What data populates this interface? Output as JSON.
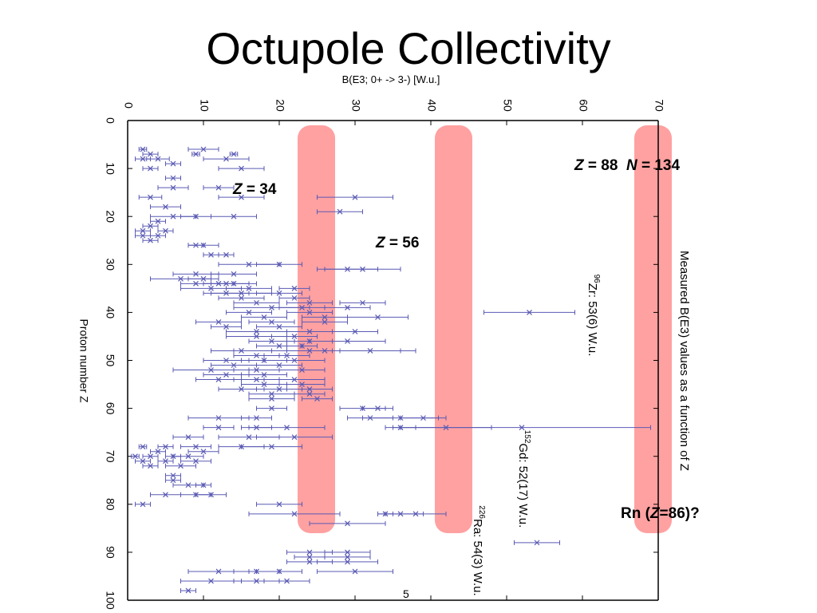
{
  "slide": {
    "title": "Octupole Collectivity",
    "page_number": "5"
  },
  "highlights": [
    {
      "z": 34,
      "label_italic": "Z",
      "label_rest": " = 34"
    },
    {
      "z": 56,
      "label_italic": "Z",
      "label_rest": " = 56"
    },
    {
      "z": 88,
      "label_italic": "Z",
      "label_rest": " = 88",
      "extra_italic": "N",
      "extra_rest": " = 134"
    }
  ],
  "rn_label": {
    "prefix": "Rn (",
    "italic": "Z",
    "suffix": "=86)?"
  },
  "colors": {
    "highlight_band": "#ff9c9c",
    "data_marks": "#5a5ab4",
    "axis": "#000000"
  },
  "chart_data": {
    "type": "scatter",
    "title": "Measured B(E3) values as a function of Z",
    "xlabel": "Proton number Z",
    "ylabel": "B(E3; 0+ -> 3-) [W.u.]",
    "xlim": [
      0,
      100
    ],
    "ylim": [
      0,
      70
    ],
    "x_ticks": [
      "0",
      "10",
      "20",
      "30",
      "40",
      "50",
      "60",
      "70",
      "80",
      "90",
      "100"
    ],
    "y_ticks": [
      "0",
      "10",
      "20",
      "30",
      "40",
      "50",
      "60",
      "70"
    ],
    "annotations": [
      {
        "nuclide_mass": "96",
        "text": "Zr: 53(6) W.u.",
        "z": 40
      },
      {
        "nuclide_mass": "152",
        "text": "Gd: 52(17) W.u.",
        "z": 64
      },
      {
        "nuclide_mass": "226",
        "text": "Ra: 54(3) W.u.",
        "z": 88
      }
    ],
    "series": [
      {
        "name": "",
        "points": [
          {
            "z": 6,
            "v": 2,
            "err": 0.5
          },
          {
            "z": 6,
            "v": 10,
            "err": 2
          },
          {
            "z": 7,
            "v": 3,
            "err": 1
          },
          {
            "z": 7,
            "v": 9,
            "err": 0.5
          },
          {
            "z": 7,
            "v": 14,
            "err": 0.5
          },
          {
            "z": 8,
            "v": 2,
            "err": 1
          },
          {
            "z": 8,
            "v": 4,
            "err": 1.5
          },
          {
            "z": 8,
            "v": 13,
            "err": 3
          },
          {
            "z": 9,
            "v": 6,
            "err": 1
          },
          {
            "z": 10,
            "v": 3,
            "err": 1
          },
          {
            "z": 10,
            "v": 15,
            "err": 3
          },
          {
            "z": 12,
            "v": 6,
            "err": 1
          },
          {
            "z": 14,
            "v": 6,
            "err": 2
          },
          {
            "z": 14,
            "v": 12,
            "err": 2
          },
          {
            "z": 16,
            "v": 3,
            "err": 1.5
          },
          {
            "z": 16,
            "v": 15,
            "err": 3
          },
          {
            "z": 16,
            "v": 30,
            "err": 5
          },
          {
            "z": 18,
            "v": 5,
            "err": 2
          },
          {
            "z": 19,
            "v": 28,
            "err": 3
          },
          {
            "z": 20,
            "v": 6,
            "err": 3
          },
          {
            "z": 20,
            "v": 9,
            "err": 2
          },
          {
            "z": 20,
            "v": 14,
            "err": 3
          },
          {
            "z": 21,
            "v": 4,
            "err": 1
          },
          {
            "z": 22,
            "v": 3,
            "err": 1
          },
          {
            "z": 23,
            "v": 2,
            "err": 1
          },
          {
            "z": 23,
            "v": 5,
            "err": 1
          },
          {
            "z": 24,
            "v": 2,
            "err": 1
          },
          {
            "z": 24,
            "v": 4,
            "err": 1
          },
          {
            "z": 25,
            "v": 3,
            "err": 1
          },
          {
            "z": 26,
            "v": 9,
            "err": 1
          },
          {
            "z": 26,
            "v": 10,
            "err": 2
          },
          {
            "z": 28,
            "v": 11,
            "err": 1
          },
          {
            "z": 28,
            "v": 13,
            "err": 1
          },
          {
            "z": 30,
            "v": 16,
            "err": 4
          },
          {
            "z": 30,
            "v": 20,
            "err": 3
          },
          {
            "z": 31,
            "v": 29,
            "err": 4
          },
          {
            "z": 31,
            "v": 31,
            "err": 5
          },
          {
            "z": 32,
            "v": 9,
            "err": 3
          },
          {
            "z": 32,
            "v": 14,
            "err": 3
          },
          {
            "z": 33,
            "v": 7,
            "err": 4
          },
          {
            "z": 33,
            "v": 10,
            "err": 2
          },
          {
            "z": 34,
            "v": 9,
            "err": 2
          },
          {
            "z": 34,
            "v": 12,
            "err": 2
          },
          {
            "z": 34,
            "v": 13,
            "err": 3
          },
          {
            "z": 34,
            "v": 14,
            "err": 3
          },
          {
            "z": 35,
            "v": 11,
            "err": 4
          },
          {
            "z": 35,
            "v": 16,
            "err": 3
          },
          {
            "z": 35,
            "v": 22,
            "err": 2
          },
          {
            "z": 36,
            "v": 13,
            "err": 3
          },
          {
            "z": 36,
            "v": 15,
            "err": 4
          },
          {
            "z": 36,
            "v": 20,
            "err": 3
          },
          {
            "z": 37,
            "v": 15,
            "err": 3
          },
          {
            "z": 37,
            "v": 22,
            "err": 2
          },
          {
            "z": 38,
            "v": 17,
            "err": 3
          },
          {
            "z": 38,
            "v": 24,
            "err": 3
          },
          {
            "z": 38,
            "v": 31,
            "err": 3
          },
          {
            "z": 39,
            "v": 19,
            "err": 5
          },
          {
            "z": 39,
            "v": 23,
            "err": 3
          },
          {
            "z": 39,
            "v": 29,
            "err": 3
          },
          {
            "z": 40,
            "v": 16,
            "err": 3
          },
          {
            "z": 40,
            "v": 24,
            "err": 3
          },
          {
            "z": 40,
            "v": 53,
            "err": 6
          },
          {
            "z": 41,
            "v": 18,
            "err": 3
          },
          {
            "z": 41,
            "v": 26,
            "err": 3
          },
          {
            "z": 41,
            "v": 33,
            "err": 4
          },
          {
            "z": 42,
            "v": 12,
            "err": 3
          },
          {
            "z": 42,
            "v": 19,
            "err": 3
          },
          {
            "z": 42,
            "v": 26,
            "err": 3
          },
          {
            "z": 43,
            "v": 13,
            "err": 2
          },
          {
            "z": 43,
            "v": 20,
            "err": 3
          },
          {
            "z": 44,
            "v": 17,
            "err": 4
          },
          {
            "z": 44,
            "v": 24,
            "err": 3
          },
          {
            "z": 44,
            "v": 30,
            "err": 3
          },
          {
            "z": 45,
            "v": 17,
            "err": 4
          },
          {
            "z": 45,
            "v": 22,
            "err": 3
          },
          {
            "z": 46,
            "v": 19,
            "err": 3
          },
          {
            "z": 46,
            "v": 24,
            "err": 3
          },
          {
            "z": 46,
            "v": 29,
            "err": 5
          },
          {
            "z": 47,
            "v": 20,
            "err": 3
          },
          {
            "z": 47,
            "v": 23,
            "err": 2
          },
          {
            "z": 48,
            "v": 15,
            "err": 4
          },
          {
            "z": 48,
            "v": 24,
            "err": 3
          },
          {
            "z": 48,
            "v": 26,
            "err": 12
          },
          {
            "z": 48,
            "v": 32,
            "err": 4
          },
          {
            "z": 49,
            "v": 17,
            "err": 3
          },
          {
            "z": 49,
            "v": 21,
            "err": 3
          },
          {
            "z": 50,
            "v": 13,
            "err": 3
          },
          {
            "z": 50,
            "v": 18,
            "err": 3
          },
          {
            "z": 50,
            "v": 22,
            "err": 4
          },
          {
            "z": 51,
            "v": 14,
            "err": 3
          },
          {
            "z": 51,
            "v": 20,
            "err": 3
          },
          {
            "z": 52,
            "v": 11,
            "err": 5
          },
          {
            "z": 52,
            "v": 17,
            "err": 3
          },
          {
            "z": 52,
            "v": 23,
            "err": 3
          },
          {
            "z": 53,
            "v": 13,
            "err": 3
          },
          {
            "z": 53,
            "v": 18,
            "err": 3
          },
          {
            "z": 54,
            "v": 12,
            "err": 3
          },
          {
            "z": 54,
            "v": 17,
            "err": 3
          },
          {
            "z": 54,
            "v": 22,
            "err": 4
          },
          {
            "z": 55,
            "v": 18,
            "err": 3
          },
          {
            "z": 55,
            "v": 23,
            "err": 3
          },
          {
            "z": 56,
            "v": 15,
            "err": 3
          },
          {
            "z": 56,
            "v": 20,
            "err": 3
          },
          {
            "z": 56,
            "v": 24,
            "err": 3
          },
          {
            "z": 57,
            "v": 19,
            "err": 3
          },
          {
            "z": 57,
            "v": 24,
            "err": 2
          },
          {
            "z": 58,
            "v": 25,
            "err": 2
          },
          {
            "z": 58,
            "v": 19,
            "err": 3
          },
          {
            "z": 60,
            "v": 19,
            "err": 2
          },
          {
            "z": 60,
            "v": 31,
            "err": 3
          },
          {
            "z": 60,
            "v": 33,
            "err": 2
          },
          {
            "z": 62,
            "v": 12,
            "err": 4
          },
          {
            "z": 62,
            "v": 17,
            "err": 2
          },
          {
            "z": 62,
            "v": 32,
            "err": 3
          },
          {
            "z": 62,
            "v": 36,
            "err": 5
          },
          {
            "z": 62,
            "v": 39,
            "err": 3
          },
          {
            "z": 64,
            "v": 12,
            "err": 2
          },
          {
            "z": 64,
            "v": 17,
            "err": 2
          },
          {
            "z": 64,
            "v": 21,
            "err": 5
          },
          {
            "z": 64,
            "v": 36,
            "err": 2
          },
          {
            "z": 64,
            "v": 42,
            "err": 6
          },
          {
            "z": 64,
            "v": 52,
            "err": 17
          },
          {
            "z": 66,
            "v": 8,
            "err": 2
          },
          {
            "z": 66,
            "v": 16,
            "err": 4
          },
          {
            "z": 66,
            "v": 22,
            "err": 5
          },
          {
            "z": 68,
            "v": 2,
            "err": 0.5
          },
          {
            "z": 68,
            "v": 5,
            "err": 1
          },
          {
            "z": 68,
            "v": 9,
            "err": 2
          },
          {
            "z": 68,
            "v": 15,
            "err": 3
          },
          {
            "z": 68,
            "v": 19,
            "err": 4
          },
          {
            "z": 69,
            "v": 4,
            "err": 1
          },
          {
            "z": 69,
            "v": 10,
            "err": 2
          },
          {
            "z": 70,
            "v": 1,
            "err": 0.5
          },
          {
            "z": 70,
            "v": 3,
            "err": 1
          },
          {
            "z": 70,
            "v": 6,
            "err": 1
          },
          {
            "z": 70,
            "v": 8,
            "err": 2
          },
          {
            "z": 71,
            "v": 2,
            "err": 1
          },
          {
            "z": 71,
            "v": 5,
            "err": 1
          },
          {
            "z": 71,
            "v": 9,
            "err": 2
          },
          {
            "z": 72,
            "v": 3,
            "err": 1
          },
          {
            "z": 72,
            "v": 7,
            "err": 2
          },
          {
            "z": 74,
            "v": 6,
            "err": 1
          },
          {
            "z": 75,
            "v": 6,
            "err": 1
          },
          {
            "z": 76,
            "v": 8,
            "err": 2
          },
          {
            "z": 76,
            "v": 10,
            "err": 1
          },
          {
            "z": 78,
            "v": 5,
            "err": 2
          },
          {
            "z": 78,
            "v": 9,
            "err": 2
          },
          {
            "z": 78,
            "v": 11,
            "err": 2
          },
          {
            "z": 80,
            "v": 2,
            "err": 1
          },
          {
            "z": 80,
            "v": 20,
            "err": 3
          },
          {
            "z": 82,
            "v": 22,
            "err": 6
          },
          {
            "z": 82,
            "v": 34,
            "err": 1
          },
          {
            "z": 82,
            "v": 36,
            "err": 3
          },
          {
            "z": 82,
            "v": 38,
            "err": 4
          },
          {
            "z": 84,
            "v": 29,
            "err": 5
          },
          {
            "z": 88,
            "v": 54,
            "err": 3
          },
          {
            "z": 90,
            "v": 24,
            "err": 3
          },
          {
            "z": 90,
            "v": 29,
            "err": 3
          },
          {
            "z": 91,
            "v": 24,
            "err": 2
          },
          {
            "z": 91,
            "v": 29,
            "err": 3
          },
          {
            "z": 92,
            "v": 24,
            "err": 3
          },
          {
            "z": 92,
            "v": 29,
            "err": 4
          },
          {
            "z": 94,
            "v": 12,
            "err": 4
          },
          {
            "z": 94,
            "v": 17,
            "err": 3
          },
          {
            "z": 94,
            "v": 20,
            "err": 3
          },
          {
            "z": 94,
            "v": 30,
            "err": 5
          },
          {
            "z": 96,
            "v": 11,
            "err": 4
          },
          {
            "z": 96,
            "v": 17,
            "err": 3
          },
          {
            "z": 96,
            "v": 21,
            "err": 3
          },
          {
            "z": 98,
            "v": 8,
            "err": 1
          }
        ]
      }
    ]
  }
}
